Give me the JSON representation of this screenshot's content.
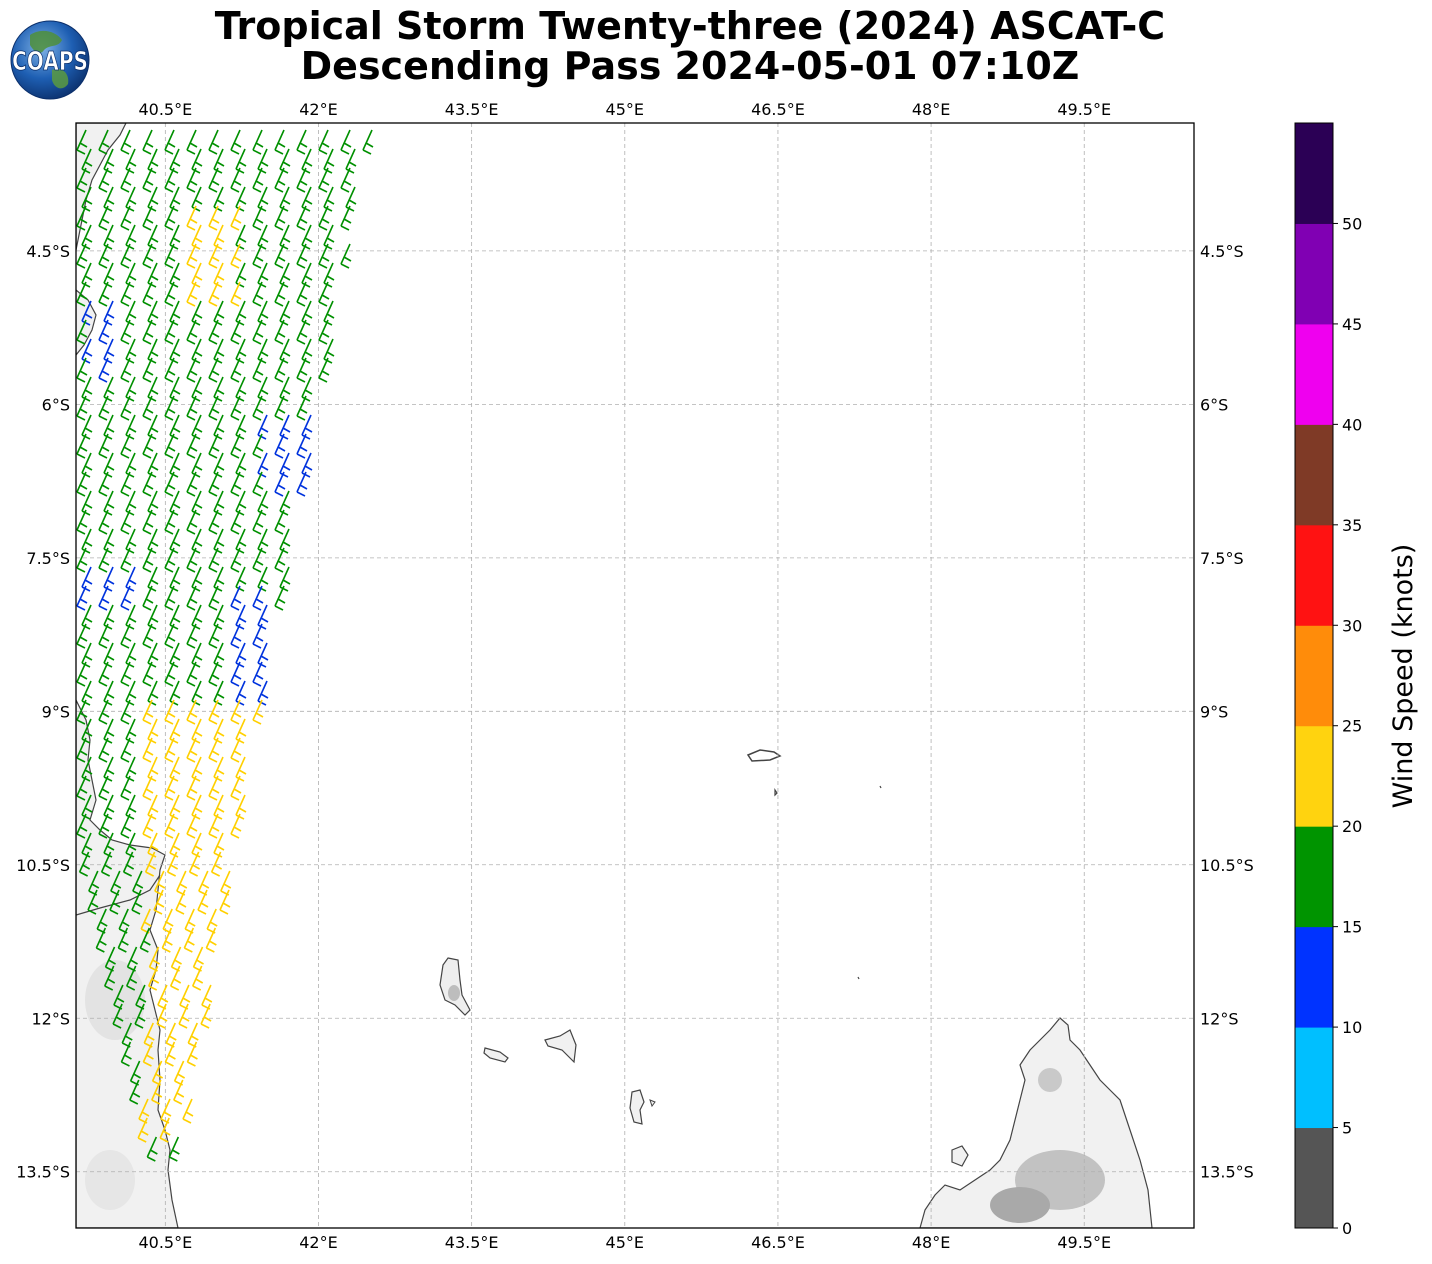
{
  "title": {
    "line1": "Tropical Storm Twenty-three (2024) ASCAT-C",
    "line2": "Descending Pass 2024-05-01 07:10Z"
  },
  "logo": {
    "text": "COAPS"
  },
  "map": {
    "lon_range": [
      39.625,
      50.575
    ],
    "lat_range": [
      -14.05,
      -3.25
    ],
    "lon_ticks": [
      "40.5°E",
      "42°E",
      "43.5°E",
      "45°E",
      "46.5°E",
      "48°E",
      "49.5°E"
    ],
    "lat_ticks": [
      "4.5°S",
      "6°S",
      "7.5°S",
      "9°S",
      "10.5°S",
      "12°S",
      "13.5°S"
    ],
    "grid": true,
    "gridline_color": "#b0b0b0",
    "land_color": "#f1f1f1",
    "coast_color": "#444444"
  },
  "colorbar": {
    "label": "Wind Speed (knots)",
    "ticks": [
      "0",
      "5",
      "10",
      "15",
      "20",
      "25",
      "30",
      "35",
      "40",
      "45",
      "50"
    ],
    "colors": [
      "#555555",
      "#00bfff",
      "#0033ff",
      "#009400",
      "#ffd30f",
      "#ff8c0a",
      "#ff1212",
      "#7f3a26",
      "#ef00ef",
      "#8000b3",
      "#2b0055"
    ]
  },
  "wind_legend": {
    "blue": "#0033dd",
    "green": "#009000",
    "yellow": "#ffd000"
  }
}
